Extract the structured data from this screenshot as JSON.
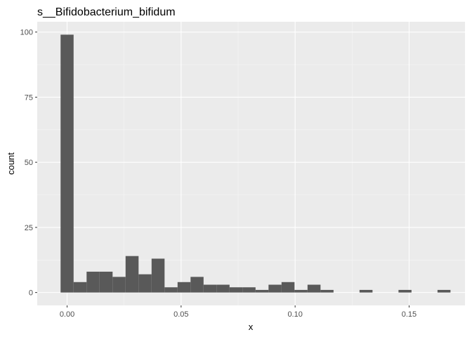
{
  "chart_data": {
    "type": "bar",
    "title": "s__Bifidobacterium_bifidum",
    "xlabel": "x",
    "ylabel": "count",
    "bin_width": 0.0057,
    "bins": [
      {
        "x": 0.0,
        "count": 99
      },
      {
        "x": 0.0057,
        "count": 4
      },
      {
        "x": 0.0114,
        "count": 8
      },
      {
        "x": 0.0171,
        "count": 8
      },
      {
        "x": 0.0228,
        "count": 6
      },
      {
        "x": 0.0285,
        "count": 14
      },
      {
        "x": 0.0342,
        "count": 7
      },
      {
        "x": 0.0399,
        "count": 13
      },
      {
        "x": 0.0456,
        "count": 2
      },
      {
        "x": 0.0513,
        "count": 4
      },
      {
        "x": 0.057,
        "count": 6
      },
      {
        "x": 0.0627,
        "count": 3
      },
      {
        "x": 0.0684,
        "count": 3
      },
      {
        "x": 0.0741,
        "count": 2
      },
      {
        "x": 0.0798,
        "count": 2
      },
      {
        "x": 0.0855,
        "count": 1
      },
      {
        "x": 0.0912,
        "count": 3
      },
      {
        "x": 0.0969,
        "count": 4
      },
      {
        "x": 0.1026,
        "count": 1
      },
      {
        "x": 0.1083,
        "count": 3
      },
      {
        "x": 0.114,
        "count": 1
      },
      {
        "x": 0.1197,
        "count": 0
      },
      {
        "x": 0.1254,
        "count": 0
      },
      {
        "x": 0.1311,
        "count": 1
      },
      {
        "x": 0.1368,
        "count": 0
      },
      {
        "x": 0.1425,
        "count": 0
      },
      {
        "x": 0.1482,
        "count": 1
      },
      {
        "x": 0.1539,
        "count": 0
      },
      {
        "x": 0.1596,
        "count": 0
      },
      {
        "x": 0.1653,
        "count": 1
      }
    ],
    "xlim": [
      -0.0131,
      0.1745
    ],
    "ylim": [
      -4.95,
      103.95
    ],
    "x_ticks": [
      {
        "value": 0.0,
        "label": "0.00"
      },
      {
        "value": 0.05,
        "label": "0.05"
      },
      {
        "value": 0.1,
        "label": "0.10"
      },
      {
        "value": 0.15,
        "label": "0.15"
      }
    ],
    "y_ticks": [
      {
        "value": 0,
        "label": "0"
      },
      {
        "value": 25,
        "label": "25"
      },
      {
        "value": 50,
        "label": "50"
      },
      {
        "value": 75,
        "label": "75"
      },
      {
        "value": 100,
        "label": "100"
      }
    ],
    "grid": true,
    "colors": {
      "panel_background": "#ebebeb",
      "grid_major": "#ffffff",
      "grid_minor": "#f5f5f5",
      "bar_fill": "#595959",
      "tick_text": "#4d4d4d",
      "tick_mark": "#333333"
    }
  }
}
